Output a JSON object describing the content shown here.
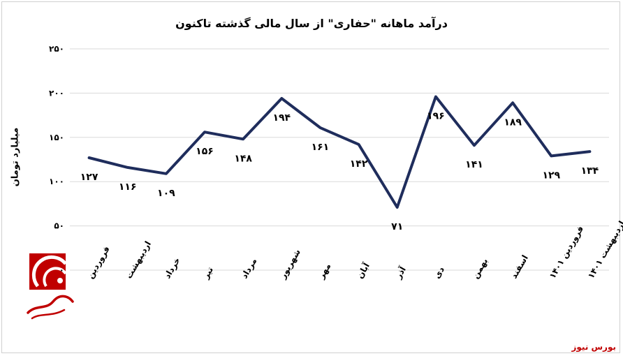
{
  "chart_data": {
    "type": "line",
    "title": "درآمد ماهانه \"حفاری\" از سال مالی گذشته تاکنون",
    "ylabel": "میلیارد تومان",
    "xlabel": "",
    "ylim": [
      0,
      250
    ],
    "yticks": [
      "۰",
      "۵۰",
      "۱۰۰",
      "۱۵۰",
      "۲۰۰",
      "۲۵۰"
    ],
    "ytick_values": [
      0,
      50,
      100,
      150,
      200,
      250
    ],
    "grid": true,
    "categories": [
      "فروردین",
      "اردیبهشت",
      "خرداد",
      "تیر",
      "مرداد",
      "شهریور",
      "مهر",
      "آبان",
      "آذر",
      "دی",
      "بهمن",
      "اسفند",
      "فروردین ۱۴۰۱",
      "اردیبهشت ۱۴۰۱"
    ],
    "values": [
      127,
      116,
      109,
      156,
      148,
      194,
      161,
      142,
      71,
      196,
      141,
      189,
      129,
      134
    ],
    "value_labels": [
      "۱۲۷",
      "۱۱۶",
      "۱۰۹",
      "۱۵۶",
      "۱۴۸",
      "۱۹۴",
      "۱۶۱",
      "۱۴۲",
      "۷۱",
      "۱۹۶",
      "۱۴۱",
      "۱۸۹",
      "۱۲۹",
      "۱۳۴"
    ],
    "label_positions": [
      "below",
      "below",
      "below",
      "below",
      "below",
      "below",
      "below",
      "below",
      "below",
      "below",
      "below",
      "below",
      "below",
      "below"
    ],
    "line_color": "#1f2d5c",
    "grid_color": "#d9d9d9"
  },
  "source": "بورس نیوز",
  "logo": {
    "text": "بورس نیوز",
    "color": "#c00000"
  }
}
